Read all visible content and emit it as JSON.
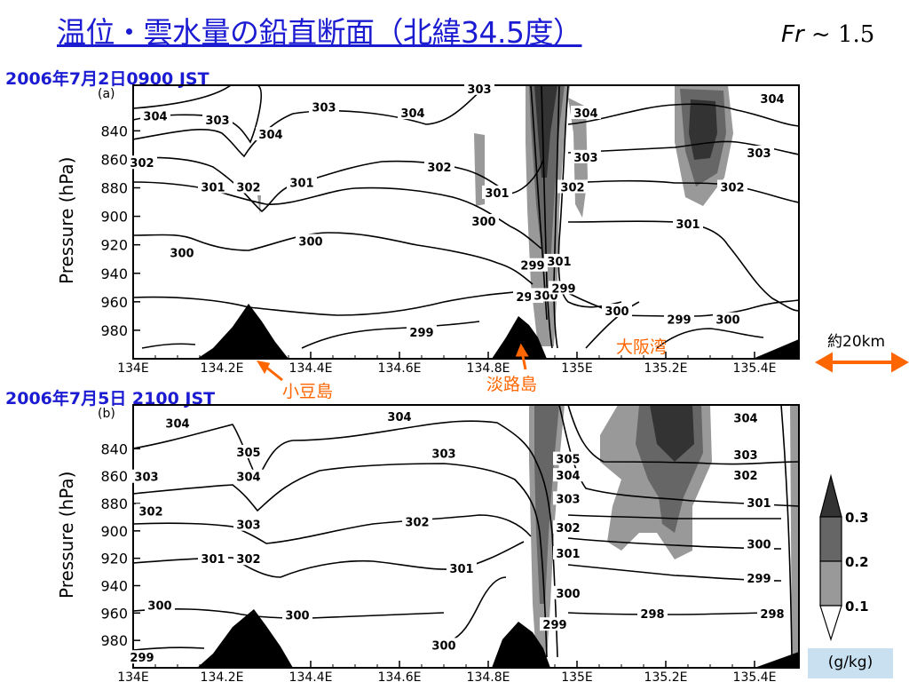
{
  "slide": {
    "title": "温位・雲水量の鉛直断面（北緯34.5度）",
    "froude_symbol": "Fr",
    "froude_value": " ~ 1.5",
    "scale_label": "約20km"
  },
  "annotations": {
    "shodoshima": "小豆島",
    "awajishima": "淡路島",
    "osaka_bay": "大阪湾"
  },
  "colorbar": {
    "levels": [
      "0.3",
      "0.2",
      "0.1"
    ],
    "unit": "(g/kg)",
    "colors": [
      "#333333",
      "#666666",
      "#999999",
      "#ffffff"
    ]
  },
  "chart_data": [
    {
      "type": "contour",
      "panel_label": "(a)",
      "date_label": "2006年7月2日0900 JST",
      "variable": "potential temperature (K) contours; cloud water (g/kg) shaded",
      "ylabel": "Pressure (hPa)",
      "x_tick_labels": [
        "134E",
        "134.2E",
        "134.4E",
        "134.6E",
        "134.8E",
        "135E",
        "135.2E",
        "135.4E"
      ],
      "x_ticks": [
        134.0,
        134.2,
        134.4,
        134.6,
        134.8,
        135.0,
        135.2,
        135.4
      ],
      "xlim": [
        134.0,
        135.5
      ],
      "y_ticks": [
        840,
        860,
        880,
        900,
        920,
        940,
        960,
        980
      ],
      "ylim": [
        1000,
        808
      ],
      "terrain_peaks": [
        {
          "lon": 134.28,
          "top_hPa": 956
        },
        {
          "lon": 134.86,
          "top_hPa": 964
        }
      ],
      "contour_labels": [
        {
          "text": "304",
          "lon": 134.05,
          "p": 830
        },
        {
          "text": "303",
          "lon": 134.19,
          "p": 833
        },
        {
          "text": "304",
          "lon": 134.31,
          "p": 843
        },
        {
          "text": "303",
          "lon": 134.43,
          "p": 824
        },
        {
          "text": "304",
          "lon": 134.63,
          "p": 828
        },
        {
          "text": "303",
          "lon": 134.78,
          "p": 811
        },
        {
          "text": "304",
          "lon": 135.02,
          "p": 828
        },
        {
          "text": "304",
          "lon": 135.44,
          "p": 818
        },
        {
          "text": "303",
          "lon": 135.02,
          "p": 859
        },
        {
          "text": "303",
          "lon": 135.41,
          "p": 856
        },
        {
          "text": "302",
          "lon": 134.02,
          "p": 863
        },
        {
          "text": "302",
          "lon": 134.69,
          "p": 866
        },
        {
          "text": "302",
          "lon": 134.99,
          "p": 880
        },
        {
          "text": "302",
          "lon": 135.35,
          "p": 880
        },
        {
          "text": "301",
          "lon": 134.18,
          "p": 880
        },
        {
          "text": "302",
          "lon": 134.26,
          "p": 880
        },
        {
          "text": "301",
          "lon": 134.38,
          "p": 877
        },
        {
          "text": "301",
          "lon": 134.82,
          "p": 884
        },
        {
          "text": "300",
          "lon": 134.79,
          "p": 904
        },
        {
          "text": "301",
          "lon": 135.25,
          "p": 906
        },
        {
          "text": "300",
          "lon": 134.11,
          "p": 926
        },
        {
          "text": "300",
          "lon": 134.4,
          "p": 918
        },
        {
          "text": "299",
          "lon": 134.9,
          "p": 935
        },
        {
          "text": "301",
          "lon": 134.96,
          "p": 932
        },
        {
          "text": "298",
          "lon": 134.89,
          "p": 957
        },
        {
          "text": "300",
          "lon": 134.93,
          "p": 956
        },
        {
          "text": "299",
          "lon": 134.97,
          "p": 951
        },
        {
          "text": "300",
          "lon": 135.09,
          "p": 967
        },
        {
          "text": "299",
          "lon": 135.23,
          "p": 973
        },
        {
          "text": "300",
          "lon": 135.34,
          "p": 973
        },
        {
          "text": "299",
          "lon": 134.65,
          "p": 982
        }
      ]
    },
    {
      "type": "contour",
      "panel_label": "(b)",
      "date_label": "2006年7月5日 2100 JST",
      "variable": "potential temperature (K) contours; cloud water (g/kg) shaded",
      "ylabel": "Pressure (hPa)",
      "x_tick_labels": [
        "134E",
        "134.2E",
        "134.4E",
        "134.6E",
        "134.8E",
        "135E",
        "135.2E",
        "135.4E"
      ],
      "x_ticks": [
        134.0,
        134.2,
        134.4,
        134.6,
        134.8,
        135.0,
        135.2,
        135.4
      ],
      "xlim": [
        134.0,
        135.5
      ],
      "y_ticks": [
        840,
        860,
        880,
        900,
        920,
        940,
        960,
        980
      ],
      "ylim": [
        1000,
        808
      ],
      "terrain_peaks": [
        {
          "lon": 134.28,
          "top_hPa": 957
        },
        {
          "lon": 134.87,
          "top_hPa": 979
        }
      ],
      "contour_labels": [
        {
          "text": "304",
          "lon": 134.1,
          "p": 822
        },
        {
          "text": "304",
          "lon": 134.6,
          "p": 817
        },
        {
          "text": "305",
          "lon": 134.26,
          "p": 843
        },
        {
          "text": "303",
          "lon": 134.7,
          "p": 844
        },
        {
          "text": "305",
          "lon": 134.98,
          "p": 848
        },
        {
          "text": "304",
          "lon": 135.38,
          "p": 818
        },
        {
          "text": "303",
          "lon": 135.38,
          "p": 845
        },
        {
          "text": "303",
          "lon": 134.03,
          "p": 861
        },
        {
          "text": "304",
          "lon": 134.26,
          "p": 861
        },
        {
          "text": "304",
          "lon": 134.98,
          "p": 860
        },
        {
          "text": "302",
          "lon": 135.38,
          "p": 860
        },
        {
          "text": "302",
          "lon": 134.04,
          "p": 886
        },
        {
          "text": "303",
          "lon": 134.98,
          "p": 877
        },
        {
          "text": "301",
          "lon": 135.41,
          "p": 880
        },
        {
          "text": "303",
          "lon": 134.26,
          "p": 896
        },
        {
          "text": "302",
          "lon": 134.64,
          "p": 894
        },
        {
          "text": "302",
          "lon": 134.98,
          "p": 898
        },
        {
          "text": "300",
          "lon": 135.41,
          "p": 910
        },
        {
          "text": "301",
          "lon": 134.18,
          "p": 921
        },
        {
          "text": "302",
          "lon": 134.26,
          "p": 921
        },
        {
          "text": "301",
          "lon": 134.74,
          "p": 928
        },
        {
          "text": "301",
          "lon": 134.98,
          "p": 917
        },
        {
          "text": "299",
          "lon": 135.41,
          "p": 935
        },
        {
          "text": "300",
          "lon": 134.06,
          "p": 955
        },
        {
          "text": "300",
          "lon": 134.37,
          "p": 962
        },
        {
          "text": "300",
          "lon": 134.98,
          "p": 946
        },
        {
          "text": "298",
          "lon": 135.17,
          "p": 961
        },
        {
          "text": "298",
          "lon": 135.44,
          "p": 961
        },
        {
          "text": "299",
          "lon": 134.95,
          "p": 969
        },
        {
          "text": "300",
          "lon": 134.7,
          "p": 984
        },
        {
          "text": "299",
          "lon": 134.02,
          "p": 993
        }
      ]
    }
  ]
}
